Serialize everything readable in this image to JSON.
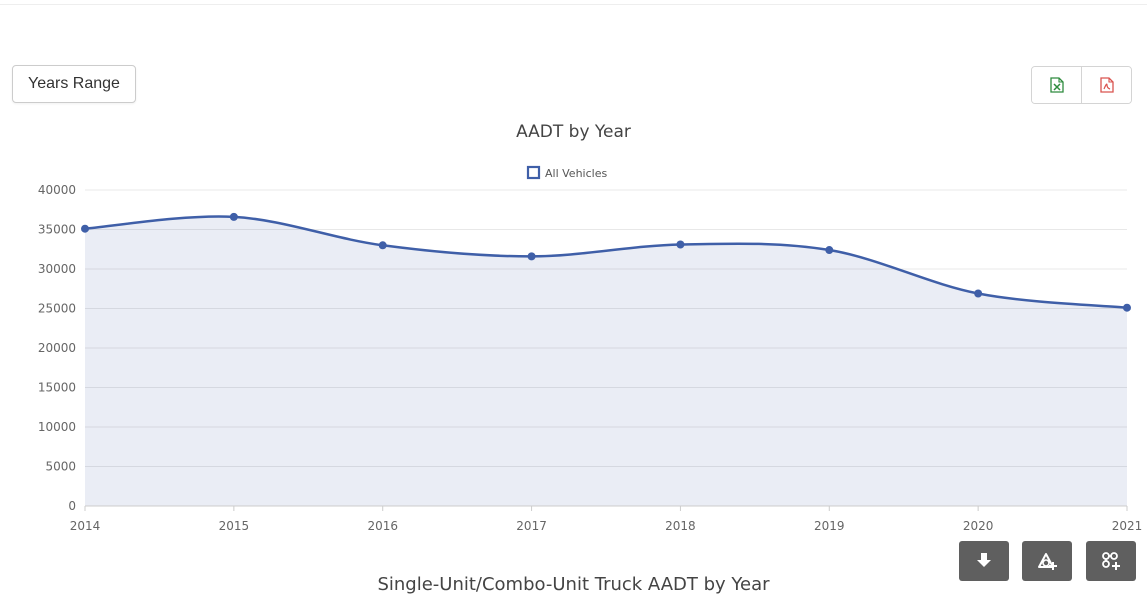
{
  "toolbar": {
    "years_range_label": "Years Range",
    "export": [
      {
        "name": "excel-export",
        "color": "#2e8b3d"
      },
      {
        "name": "pdf-export",
        "color": "#d9534f"
      }
    ]
  },
  "chart_data": {
    "type": "line",
    "title": "AADT by Year",
    "xlabel": "",
    "ylabel": "",
    "x": [
      "2014",
      "2015",
      "2016",
      "2017",
      "2018",
      "2019",
      "2020",
      "2021"
    ],
    "series": [
      {
        "name": "All Vehicles",
        "values": [
          35100,
          36600,
          33000,
          31600,
          33100,
          32400,
          26900,
          25100
        ],
        "color": "#3f5fa8"
      }
    ],
    "yticks": [
      "0",
      "5000",
      "10000",
      "15000",
      "20000",
      "25000",
      "30000",
      "35000",
      "40000"
    ],
    "ylim": [
      0,
      40000
    ],
    "grid": true,
    "legend": "top-center",
    "fill": "area"
  },
  "next_chart_title": "Single-Unit/Combo-Unit Truck AADT by Year",
  "tools": [
    {
      "name": "download-icon"
    },
    {
      "name": "add-layer-icon"
    },
    {
      "name": "add-network-icon"
    }
  ]
}
